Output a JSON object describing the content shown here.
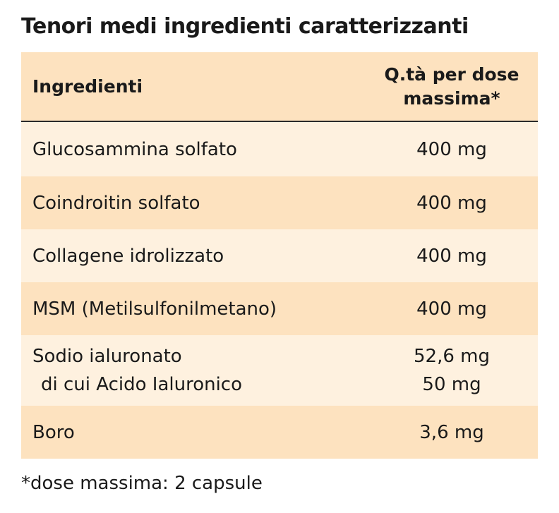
{
  "title": "Tenori medi ingredienti caratterizzanti",
  "table": {
    "header": [
      "Ingredienti",
      [
        "Q.tà per dose",
        "massima*"
      ]
    ],
    "rows": [
      [
        "Glucosammina solfato",
        "400 mg"
      ],
      [
        "Coindroitin solfato",
        "400 mg"
      ],
      [
        "Collagene idrolizzato",
        "400 mg"
      ],
      [
        "MSM (Metilsulfonilmetano)",
        "400 mg"
      ],
      [
        [
          "Sodio ialuronato",
          "di cui Acido Ialuronico"
        ],
        [
          "52,6 mg",
          "50 mg"
        ]
      ],
      [
        "Boro",
        "3,6 mg"
      ]
    ]
  },
  "footnote": "*dose massima: 2 capsule"
}
